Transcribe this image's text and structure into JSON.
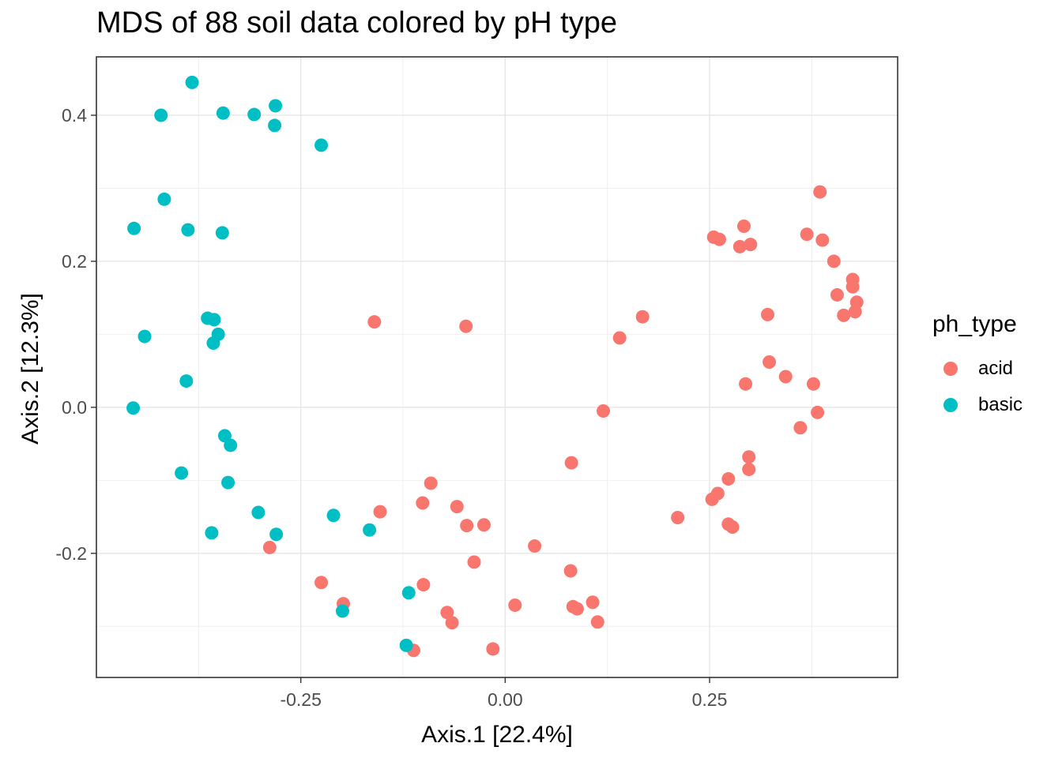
{
  "title": "MDS of 88 soil data colored by pH type",
  "chart_data": {
    "type": "scatter",
    "title": "MDS of 88 soil data colored by pH type",
    "xlabel": "Axis.1   [22.4%]",
    "ylabel": "Axis.2   [12.3%]",
    "xlim": [
      -0.5,
      0.48
    ],
    "ylim": [
      -0.37,
      0.48
    ],
    "x_ticks": [
      -0.25,
      0.0,
      0.25
    ],
    "x_tick_labels": [
      "-0.25",
      "0.00",
      "0.25"
    ],
    "y_ticks": [
      -0.2,
      0.0,
      0.2,
      0.4
    ],
    "y_tick_labels": [
      "-0.2",
      "0.0",
      "0.2",
      "0.4"
    ],
    "grid": true,
    "legend": {
      "title": "ph_type",
      "position": "right"
    },
    "series": [
      {
        "name": "acid",
        "color": "#F8766D",
        "points": [
          [
            0.385,
            0.295
          ],
          [
            0.255,
            0.233
          ],
          [
            0.262,
            0.23
          ],
          [
            0.292,
            0.248
          ],
          [
            0.3,
            0.223
          ],
          [
            0.287,
            0.22
          ],
          [
            0.369,
            0.237
          ],
          [
            0.388,
            0.229
          ],
          [
            0.402,
            0.2
          ],
          [
            0.425,
            0.175
          ],
          [
            0.425,
            0.165
          ],
          [
            0.406,
            0.154
          ],
          [
            0.43,
            0.144
          ],
          [
            0.414,
            0.126
          ],
          [
            0.428,
            0.131
          ],
          [
            0.321,
            0.127
          ],
          [
            0.168,
            0.124
          ],
          [
            0.14,
            0.095
          ],
          [
            0.323,
            0.062
          ],
          [
            0.343,
            0.042
          ],
          [
            0.377,
            0.032
          ],
          [
            0.294,
            0.032
          ],
          [
            0.382,
            -0.007
          ],
          [
            0.361,
            -0.028
          ],
          [
            0.12,
            -0.005
          ],
          [
            0.298,
            -0.068
          ],
          [
            0.298,
            -0.085
          ],
          [
            0.273,
            -0.098
          ],
          [
            0.26,
            -0.118
          ],
          [
            0.253,
            -0.126
          ],
          [
            0.081,
            -0.076
          ],
          [
            0.211,
            -0.151
          ],
          [
            0.273,
            -0.16
          ],
          [
            0.278,
            -0.164
          ],
          [
            -0.16,
            0.117
          ],
          [
            -0.048,
            0.111
          ],
          [
            -0.091,
            -0.104
          ],
          [
            -0.101,
            -0.131
          ],
          [
            -0.059,
            -0.136
          ],
          [
            -0.047,
            -0.162
          ],
          [
            -0.026,
            -0.161
          ],
          [
            -0.153,
            -0.143
          ],
          [
            0.036,
            -0.19
          ],
          [
            -0.288,
            -0.192
          ],
          [
            -0.038,
            -0.212
          ],
          [
            0.08,
            -0.224
          ],
          [
            -0.225,
            -0.24
          ],
          [
            -0.1,
            -0.243
          ],
          [
            0.012,
            -0.271
          ],
          [
            0.083,
            -0.273
          ],
          [
            0.088,
            -0.276
          ],
          [
            0.107,
            -0.267
          ],
          [
            0.113,
            -0.294
          ],
          [
            -0.198,
            -0.269
          ],
          [
            -0.071,
            -0.281
          ],
          [
            -0.065,
            -0.295
          ],
          [
            -0.112,
            -0.333
          ],
          [
            -0.015,
            -0.331
          ]
        ]
      },
      {
        "name": "basic",
        "color": "#00BFC4",
        "points": [
          [
            -0.383,
            0.445
          ],
          [
            -0.421,
            0.4
          ],
          [
            -0.345,
            0.403
          ],
          [
            -0.307,
            0.401
          ],
          [
            -0.281,
            0.413
          ],
          [
            -0.282,
            0.386
          ],
          [
            -0.225,
            0.359
          ],
          [
            -0.417,
            0.285
          ],
          [
            -0.454,
            0.245
          ],
          [
            -0.388,
            0.243
          ],
          [
            -0.346,
            0.239
          ],
          [
            -0.441,
            0.097
          ],
          [
            -0.364,
            0.122
          ],
          [
            -0.356,
            0.12
          ],
          [
            -0.351,
            0.1
          ],
          [
            -0.357,
            0.088
          ],
          [
            -0.39,
            0.036
          ],
          [
            -0.455,
            -0.001
          ],
          [
            -0.343,
            -0.039
          ],
          [
            -0.336,
            -0.052
          ],
          [
            -0.396,
            -0.09
          ],
          [
            -0.339,
            -0.103
          ],
          [
            -0.302,
            -0.144
          ],
          [
            -0.21,
            -0.148
          ],
          [
            -0.166,
            -0.168
          ],
          [
            -0.359,
            -0.172
          ],
          [
            -0.28,
            -0.174
          ],
          [
            -0.199,
            -0.279
          ],
          [
            -0.118,
            -0.254
          ],
          [
            -0.121,
            -0.326
          ]
        ]
      }
    ]
  }
}
